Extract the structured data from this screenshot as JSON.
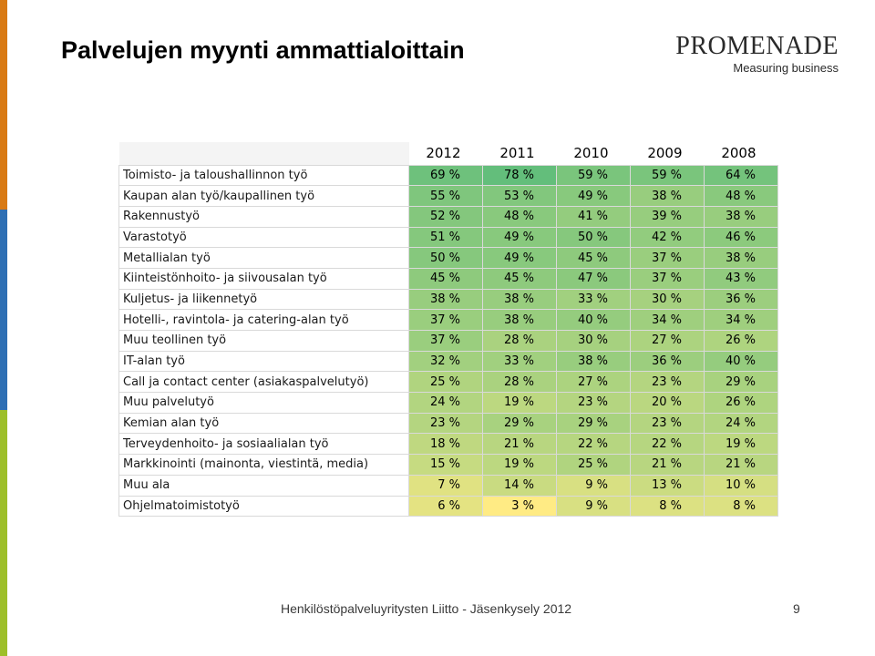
{
  "slide": {
    "title": "Palvelujen myynti ammattialoittain",
    "logo_main": "PROMENADE",
    "logo_sub": "Measuring business",
    "footer": "Henkilöstöpalveluyritysten Liitto - Jäsenkysely 2012",
    "page_number": "9"
  },
  "colors": {
    "high": "#63be7b",
    "low": "#ffeb84",
    "stripe_orange": "#d97a14",
    "stripe_blue": "#2e6fb4",
    "stripe_green": "#9dbf2a"
  },
  "table": {
    "years": [
      "2012",
      "2011",
      "2010",
      "2009",
      "2008"
    ],
    "rows": [
      {
        "label": "Toimisto- ja taloushallinnon työ",
        "values": [
          "69 %",
          "78 %",
          "59 %",
          "59 %",
          "64 %"
        ]
      },
      {
        "label": "Kaupan alan työ/kaupallinen työ",
        "values": [
          "55 %",
          "53 %",
          "49 %",
          "38 %",
          "48 %"
        ]
      },
      {
        "label": "Rakennustyö",
        "values": [
          "52 %",
          "48 %",
          "41 %",
          "39 %",
          "38 %"
        ]
      },
      {
        "label": "Varastotyö",
        "values": [
          "51 %",
          "49 %",
          "50 %",
          "42 %",
          "46 %"
        ]
      },
      {
        "label": "Metallialan työ",
        "values": [
          "50 %",
          "49 %",
          "45 %",
          "37 %",
          "38 %"
        ]
      },
      {
        "label": "Kiinteistönhoito- ja siivousalan työ",
        "values": [
          "45 %",
          "45 %",
          "47 %",
          "37 %",
          "43 %"
        ]
      },
      {
        "label": "Kuljetus- ja liikennetyö",
        "values": [
          "38 %",
          "38 %",
          "33 %",
          "30 %",
          "36 %"
        ]
      },
      {
        "label": "Hotelli-, ravintola- ja catering-alan työ",
        "values": [
          "37 %",
          "38 %",
          "40 %",
          "34 %",
          "34 %"
        ]
      },
      {
        "label": "Muu teollinen työ",
        "values": [
          "37 %",
          "28 %",
          "30 %",
          "27 %",
          "26 %"
        ]
      },
      {
        "label": "IT-alan työ",
        "values": [
          "32 %",
          "33 %",
          "38 %",
          "36 %",
          "40 %"
        ]
      },
      {
        "label": "Call ja contact center (asiakaspalvelutyö)",
        "values": [
          "25 %",
          "28 %",
          "27 %",
          "23 %",
          "29 %"
        ]
      },
      {
        "label": "Muu palvelutyö",
        "values": [
          "24 %",
          "19 %",
          "23 %",
          "20 %",
          "26 %"
        ]
      },
      {
        "label": "Kemian alan työ",
        "values": [
          "23 %",
          "29 %",
          "29 %",
          "23 %",
          "24 %"
        ]
      },
      {
        "label": "Terveydenhoito- ja sosiaalialan työ",
        "values": [
          "18 %",
          "21 %",
          "22 %",
          "22 %",
          "19 %"
        ]
      },
      {
        "label": "Markkinointi (mainonta, viestintä, media)",
        "values": [
          "15 %",
          "19 %",
          "25 %",
          "21 %",
          "21 %"
        ]
      },
      {
        "label": "Muu ala",
        "values": [
          "7 %",
          "14 %",
          "9 %",
          "13 %",
          "10 %"
        ]
      },
      {
        "label": "Ohjelmatoimistotyö",
        "values": [
          "6 %",
          "3 %",
          "9 %",
          "8 %",
          "8 %"
        ]
      }
    ]
  }
}
